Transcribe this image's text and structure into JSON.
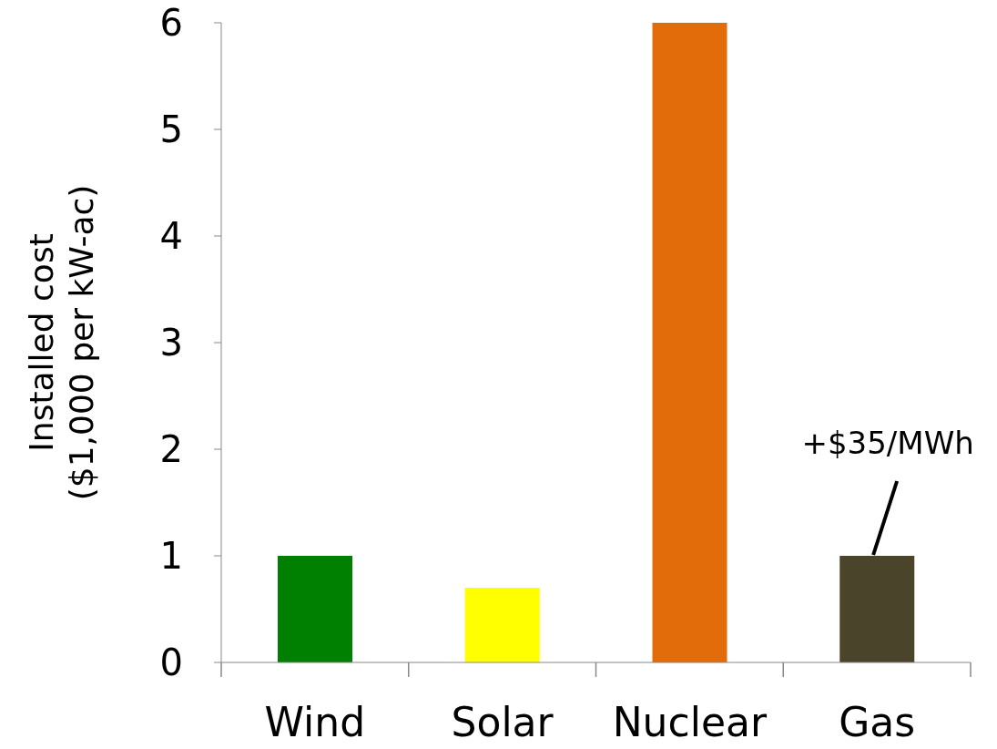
{
  "chart_data": {
    "type": "bar",
    "ylabel": "Installed cost\n($1,000 per kW-ac)",
    "categories": [
      "Wind",
      "Solar",
      "Nuclear",
      "Gas"
    ],
    "values": [
      1,
      0.7,
      6,
      1
    ],
    "colors": [
      "#008000",
      "#ffff00",
      "#e36c0a",
      "#4a452a"
    ],
    "ylim": [
      0,
      6
    ],
    "yticks": [
      0,
      1,
      2,
      3,
      4,
      5,
      6
    ],
    "grid": false,
    "legend": false,
    "annotations": [
      {
        "text": "+$35/MWh",
        "x": "Gas",
        "y": 1
      }
    ]
  }
}
